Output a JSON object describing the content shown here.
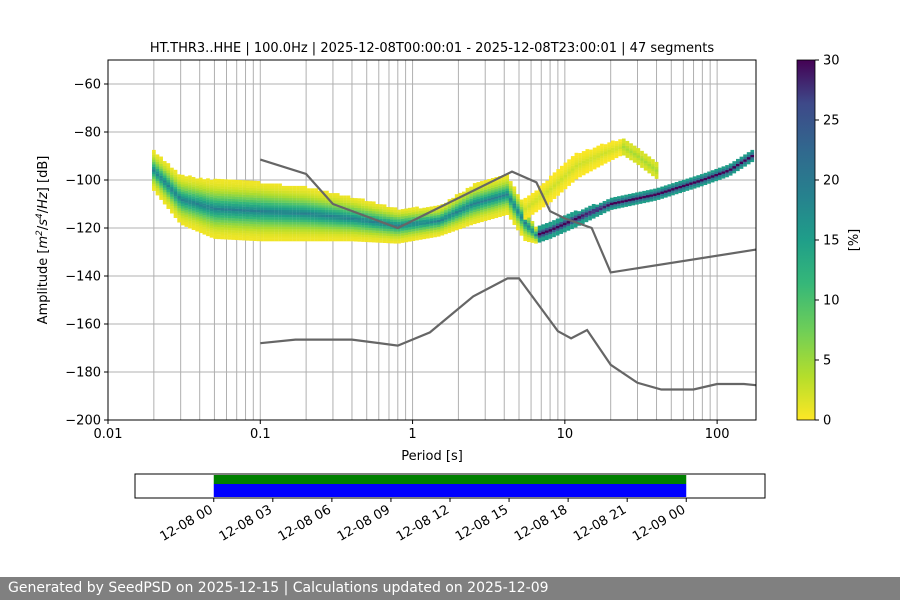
{
  "chart_data": {
    "type": "heatmap",
    "title": "HT.THR3..HHE | 100.0Hz | 2025-12-08T00:00:01 - 2025-12-08T23:00:01 | 47 segments",
    "xlabel": "Period [s]",
    "ylabel_parts": [
      "Amplitude [",
      "m",
      "2",
      "/",
      "s",
      "4",
      "/",
      "Hz",
      "] [dB]"
    ],
    "x_scale": "log",
    "xlim": [
      0.01,
      180
    ],
    "ylim": [
      -200,
      -50
    ],
    "x_tick_labels": [
      {
        "value": 0.01,
        "label": "0.01"
      },
      {
        "value": 0.1,
        "label": "0.1"
      },
      {
        "value": 1,
        "label": "1"
      },
      {
        "value": 10,
        "label": "10"
      },
      {
        "value": 100,
        "label": "100"
      }
    ],
    "y_ticks": [
      -60,
      -80,
      -100,
      -120,
      -140,
      -160,
      -180,
      -200
    ],
    "grid_periods": [
      0.02,
      0.03,
      0.04,
      0.05,
      0.06,
      0.07,
      0.08,
      0.09,
      0.1,
      0.2,
      0.3,
      0.4,
      0.5,
      0.6,
      0.7,
      0.8,
      0.9,
      1,
      2,
      3,
      4,
      5,
      6,
      7,
      8,
      9,
      10,
      20,
      30,
      40,
      50,
      60,
      70,
      80,
      90,
      100
    ],
    "colorbar": {
      "label": "[%]",
      "min": 0,
      "max": 30,
      "ticks": [
        0,
        5,
        10,
        15,
        20,
        25,
        30
      ],
      "colormap": "viridis_r"
    },
    "series": [
      {
        "kind": "reference-curve",
        "color": "#666666",
        "points": [
          [
            0.1,
            -91.5
          ],
          [
            0.2,
            -97.5
          ],
          [
            0.3,
            -110
          ],
          [
            0.8,
            -120
          ],
          [
            4.5,
            -96.5
          ],
          [
            6.5,
            -101
          ],
          [
            8,
            -113
          ],
          [
            10,
            -116
          ],
          [
            15,
            -120
          ],
          [
            20,
            -138.5
          ],
          [
            180,
            -129
          ]
        ]
      },
      {
        "kind": "reference-curve",
        "color": "#666666",
        "points": [
          [
            0.1,
            -168
          ],
          [
            0.17,
            -166.5
          ],
          [
            0.4,
            -166.5
          ],
          [
            0.8,
            -169
          ],
          [
            1.3,
            -163.5
          ],
          [
            2.5,
            -148.5
          ],
          [
            4.2,
            -141
          ],
          [
            5,
            -141
          ],
          [
            6.2,
            -149
          ],
          [
            9,
            -163
          ],
          [
            11,
            -166
          ],
          [
            14,
            -162.5
          ],
          [
            20,
            -177
          ],
          [
            30,
            -184.5
          ],
          [
            43,
            -187.3
          ],
          [
            70,
            -187.3
          ],
          [
            100,
            -185
          ],
          [
            150,
            -185
          ],
          [
            180,
            -185.5
          ]
        ]
      },
      {
        "kind": "psd-density-band",
        "name": "main",
        "points": [
          [
            0.02,
            -96
          ],
          [
            0.03,
            -108
          ],
          [
            0.05,
            -112
          ],
          [
            0.1,
            -113
          ],
          [
            0.2,
            -114
          ],
          [
            0.4,
            -116
          ],
          [
            0.8,
            -119
          ],
          [
            1.5,
            -117
          ],
          [
            2.5,
            -110
          ],
          [
            4.2,
            -106
          ],
          [
            5.5,
            -118
          ],
          [
            6.5,
            -123
          ],
          [
            8,
            -121
          ],
          [
            12,
            -116
          ],
          [
            20,
            -110
          ],
          [
            40,
            -106
          ],
          [
            80,
            -100
          ],
          [
            120,
            -96
          ],
          [
            170,
            -90
          ]
        ],
        "spread": [
          8,
          10,
          12,
          12,
          11,
          9,
          7,
          6,
          8,
          8,
          7,
          3,
          3,
          3,
          2,
          2,
          2,
          2,
          2
        ],
        "peak_percent": 30
      },
      {
        "kind": "psd-density-band",
        "name": "microseism-bump",
        "points": [
          [
            5.5,
            -112
          ],
          [
            8,
            -104
          ],
          [
            12,
            -94
          ],
          [
            18,
            -89
          ],
          [
            24,
            -86
          ],
          [
            30,
            -90
          ],
          [
            40,
            -96
          ]
        ],
        "spread": [
          4,
          5,
          5,
          4,
          3,
          3,
          3
        ],
        "peak_percent": 4
      }
    ]
  },
  "timeline": {
    "x_ticks": [
      "12-08 00",
      "12-08 03",
      "12-08 06",
      "12-08 09",
      "12-08 12",
      "12-08 15",
      "12-08 18",
      "12-08 21",
      "12-09 00"
    ],
    "span_start_hour": -4,
    "span_end_hour": 28,
    "coverage": [
      {
        "start_hour": 0,
        "end_hour": 24
      }
    ],
    "colors": {
      "coverage": "#0000ff",
      "gaps_bar": "#008000"
    }
  },
  "footer": {
    "text": "Generated by SeedPSD on 2025-12-15 | Calculations updated on 2025-12-09"
  }
}
